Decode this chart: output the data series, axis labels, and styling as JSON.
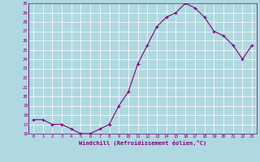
{
  "x": [
    0,
    1,
    2,
    3,
    4,
    5,
    6,
    7,
    8,
    9,
    10,
    11,
    12,
    13,
    14,
    15,
    16,
    17,
    18,
    19,
    20,
    21,
    22,
    23
  ],
  "y": [
    17.5,
    17.5,
    17.0,
    17.0,
    16.5,
    16.0,
    16.0,
    16.5,
    17.0,
    19.0,
    20.5,
    23.5,
    25.5,
    27.5,
    28.5,
    29.0,
    30.0,
    29.5,
    28.5,
    27.0,
    26.5,
    25.5,
    24.0,
    25.5
  ],
  "line_color": "#800080",
  "marker": "+",
  "marker_color": "#800080",
  "bg_color": "#b0d8e0",
  "grid_color": "#ffffff",
  "xlabel": "Windchill (Refroidissement éolien,°C)",
  "xlabel_color": "#800080",
  "tick_color": "#800080",
  "ylim": [
    16,
    30
  ],
  "xlim": [
    -0.5,
    23.5
  ],
  "yticks": [
    16,
    17,
    18,
    19,
    20,
    21,
    22,
    23,
    24,
    25,
    26,
    27,
    28,
    29,
    30
  ],
  "xticks": [
    0,
    1,
    2,
    3,
    4,
    5,
    6,
    7,
    8,
    9,
    10,
    11,
    12,
    13,
    14,
    15,
    16,
    17,
    18,
    19,
    20,
    21,
    22,
    23
  ]
}
